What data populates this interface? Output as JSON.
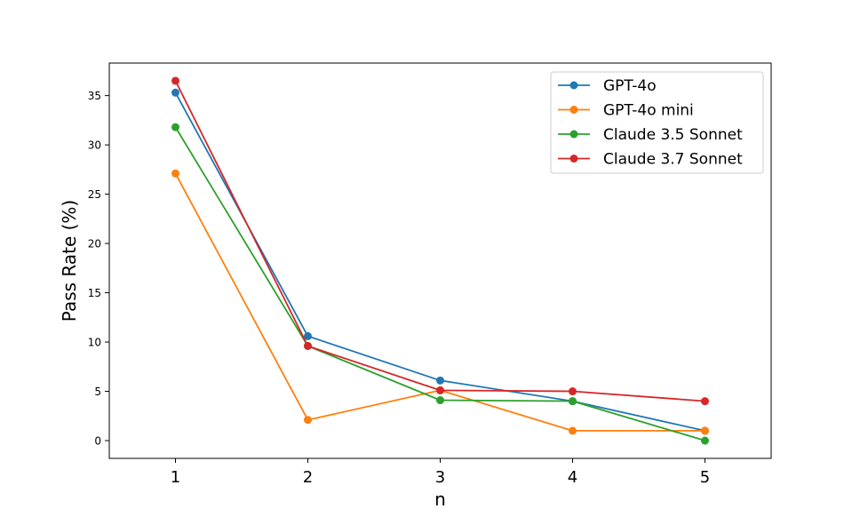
{
  "chart_data": {
    "type": "line",
    "x": [
      1,
      2,
      3,
      4,
      5
    ],
    "series": [
      {
        "name": "GPT-4o",
        "color": "#1f77b4",
        "values": [
          35.3,
          10.6,
          6.1,
          4.0,
          1.0
        ]
      },
      {
        "name": "GPT-4o mini",
        "color": "#ff7f0e",
        "values": [
          27.1,
          2.1,
          5.1,
          1.0,
          1.0
        ]
      },
      {
        "name": "Claude 3.5 Sonnet",
        "color": "#2ca02c",
        "values": [
          31.8,
          9.6,
          4.1,
          4.0,
          0.0
        ]
      },
      {
        "name": "Claude 3.7 Sonnet",
        "color": "#d62728",
        "values": [
          36.5,
          9.6,
          5.1,
          5.0,
          4.0
        ]
      }
    ],
    "xlabel": "n",
    "ylabel": "Pass Rate (%)",
    "xticks": [
      1,
      2,
      3,
      4,
      5
    ],
    "yticks": [
      0,
      5,
      10,
      15,
      20,
      25,
      30,
      35
    ],
    "xlim": [
      0.5,
      5.5
    ],
    "ylim": [
      -1.8,
      38.3
    ],
    "grid": false,
    "legend_position": "top-right"
  }
}
